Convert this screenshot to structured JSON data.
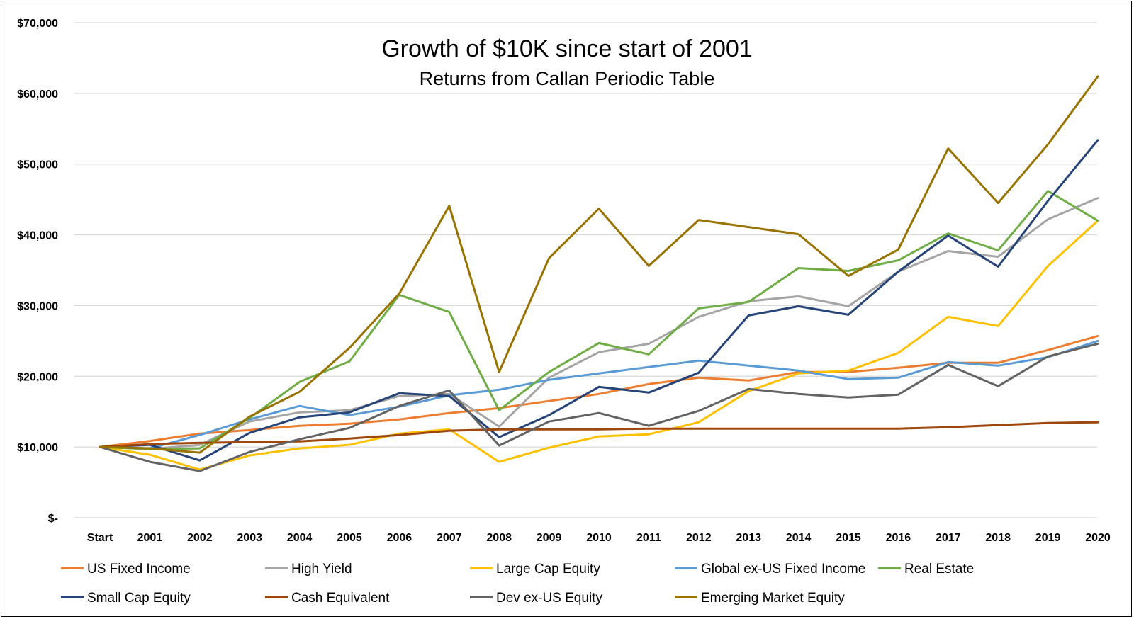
{
  "chart_data": {
    "type": "line",
    "title": "Growth of $10K since start of 2001",
    "subtitle": "Returns from Callan Periodic Table",
    "categories": [
      "Start",
      "2001",
      "2002",
      "2003",
      "2004",
      "2005",
      "2006",
      "2007",
      "2008",
      "2009",
      "2010",
      "2011",
      "2012",
      "2013",
      "2014",
      "2015",
      "2016",
      "2017",
      "2018",
      "2019",
      "2020"
    ],
    "ylim": [
      0,
      70000
    ],
    "yticks": [
      0,
      10000,
      20000,
      30000,
      40000,
      50000,
      60000,
      70000
    ],
    "ytick_labels": [
      "$-",
      "$10,000",
      "$20,000",
      "$30,000",
      "$40,000",
      "$50,000",
      "$60,000",
      "$70,000"
    ],
    "grid": true,
    "legend_position": "bottom",
    "series": [
      {
        "name": "US Fixed Income",
        "color": "#ED7D31",
        "values": [
          10000,
          10850,
          11900,
          12400,
          13000,
          13300,
          13900,
          14800,
          15500,
          16500,
          17500,
          18900,
          19800,
          19400,
          20600,
          20600,
          21200,
          21900,
          21900,
          23700,
          25700
        ]
      },
      {
        "name": "High Yield",
        "color": "#A5A5A5",
        "values": [
          10000,
          9700,
          10300,
          13600,
          14900,
          15200,
          17200,
          17500,
          12900,
          19800,
          23400,
          24600,
          28400,
          30600,
          31300,
          29900,
          34800,
          37700,
          36900,
          42200,
          45200
        ]
      },
      {
        "name": "Large Cap Equity",
        "color": "#FFC000",
        "values": [
          10000,
          8900,
          6800,
          8800,
          9800,
          10300,
          11900,
          12500,
          7900,
          9900,
          11500,
          11800,
          13500,
          17900,
          20400,
          20800,
          23300,
          28400,
          27100,
          35600,
          42000
        ]
      },
      {
        "name": "Global ex-US Fixed Income",
        "color": "#5B9BD5",
        "values": [
          10000,
          9800,
          11700,
          13900,
          15800,
          14500,
          15700,
          17300,
          18100,
          19500,
          20400,
          21300,
          22200,
          21500,
          20800,
          19600,
          19800,
          22000,
          21500,
          22700,
          25000
        ]
      },
      {
        "name": "Real Estate",
        "color": "#70AD47",
        "values": [
          10000,
          9700,
          9800,
          14100,
          19200,
          22100,
          31500,
          29100,
          15200,
          20600,
          24700,
          23100,
          29600,
          30500,
          35300,
          34900,
          36400,
          40200,
          37800,
          46200,
          42000
        ]
      },
      {
        "name": "Small Cap Equity",
        "color": "#264478",
        "values": [
          10000,
          10300,
          8100,
          12000,
          14200,
          14900,
          17600,
          17200,
          11400,
          14500,
          18500,
          17700,
          20500,
          28600,
          29900,
          28700,
          34800,
          39900,
          35500,
          44800,
          53400
        ]
      },
      {
        "name": "Cash Equivalent",
        "color": "#9E480E",
        "values": [
          10000,
          10400,
          10600,
          10700,
          10800,
          11200,
          11700,
          12300,
          12500,
          12500,
          12500,
          12600,
          12600,
          12600,
          12600,
          12600,
          12600,
          12800,
          13100,
          13400,
          13500
        ]
      },
      {
        "name": "Dev ex-US Equity",
        "color": "#636363",
        "values": [
          10000,
          7900,
          6600,
          9300,
          11100,
          12700,
          15800,
          18000,
          10200,
          13600,
          14800,
          13000,
          15100,
          18200,
          17500,
          17000,
          17400,
          21600,
          18600,
          22800,
          24600
        ]
      },
      {
        "name": "Emerging Market Equity",
        "color": "#997300",
        "values": [
          10000,
          9800,
          9200,
          14300,
          17800,
          24000,
          31700,
          44100,
          20600,
          36700,
          43700,
          35600,
          42100,
          41100,
          40100,
          34200,
          37900,
          52200,
          44500,
          52800,
          62400
        ]
      }
    ]
  }
}
